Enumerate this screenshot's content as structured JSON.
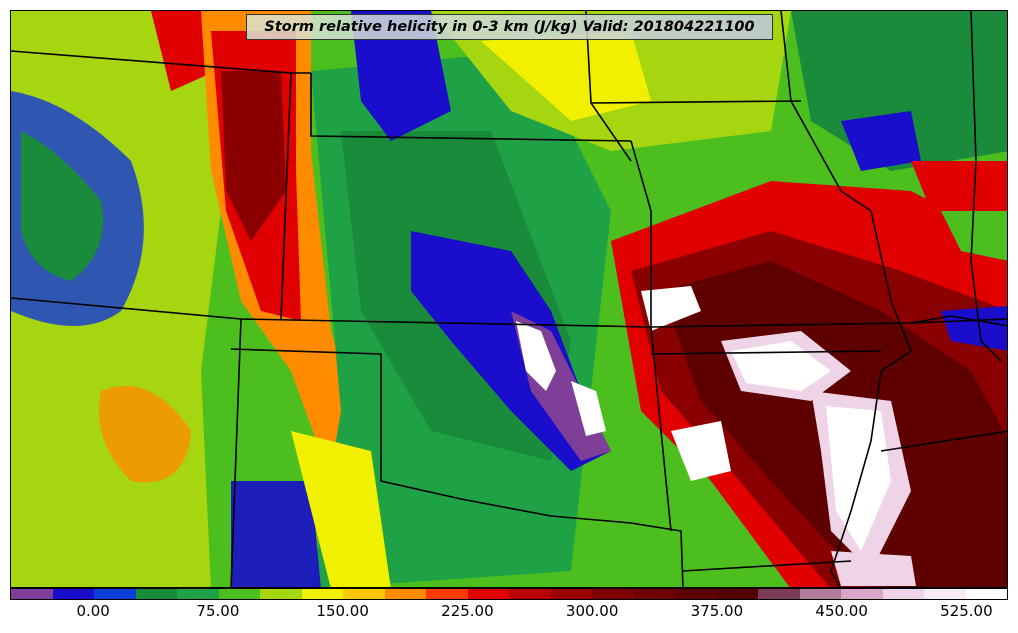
{
  "title": "Storm relative helicity in 0-3 km (J/kg) Valid: 201804221100",
  "colorbar": {
    "tick_labels": [
      "0.00",
      "75.00",
      "150.00",
      "225.00",
      "300.00",
      "375.00",
      "450.00",
      "525.00"
    ],
    "colors": [
      "#7f3f98",
      "#1a0dcc",
      "#0b3fd6",
      "#1a8b3a",
      "#1fa246",
      "#4cbf1e",
      "#a6d60f",
      "#f0f000",
      "#ffc800",
      "#ff8c00",
      "#ff3c00",
      "#e00000",
      "#b80000",
      "#9a0000",
      "#800000",
      "#6e0000",
      "#5e0000",
      "#520000",
      "#7a3d55",
      "#b07c9c",
      "#d9a6c8",
      "#efd3e7",
      "#f8ecf4",
      "#ffffff"
    ]
  },
  "field_colors": {
    "purple": "#7f3f98",
    "blue": "#1a0dcc",
    "dark_green": "#1a8b3a",
    "green": "#4cbf1e",
    "lime": "#a6d60f",
    "yellow": "#f0f000",
    "orange": "#ff8c00",
    "red": "#e00000",
    "dark_red": "#8a0000",
    "maroon": "#5e0000",
    "pink": "#efd3e7",
    "white": "#ffffff"
  }
}
